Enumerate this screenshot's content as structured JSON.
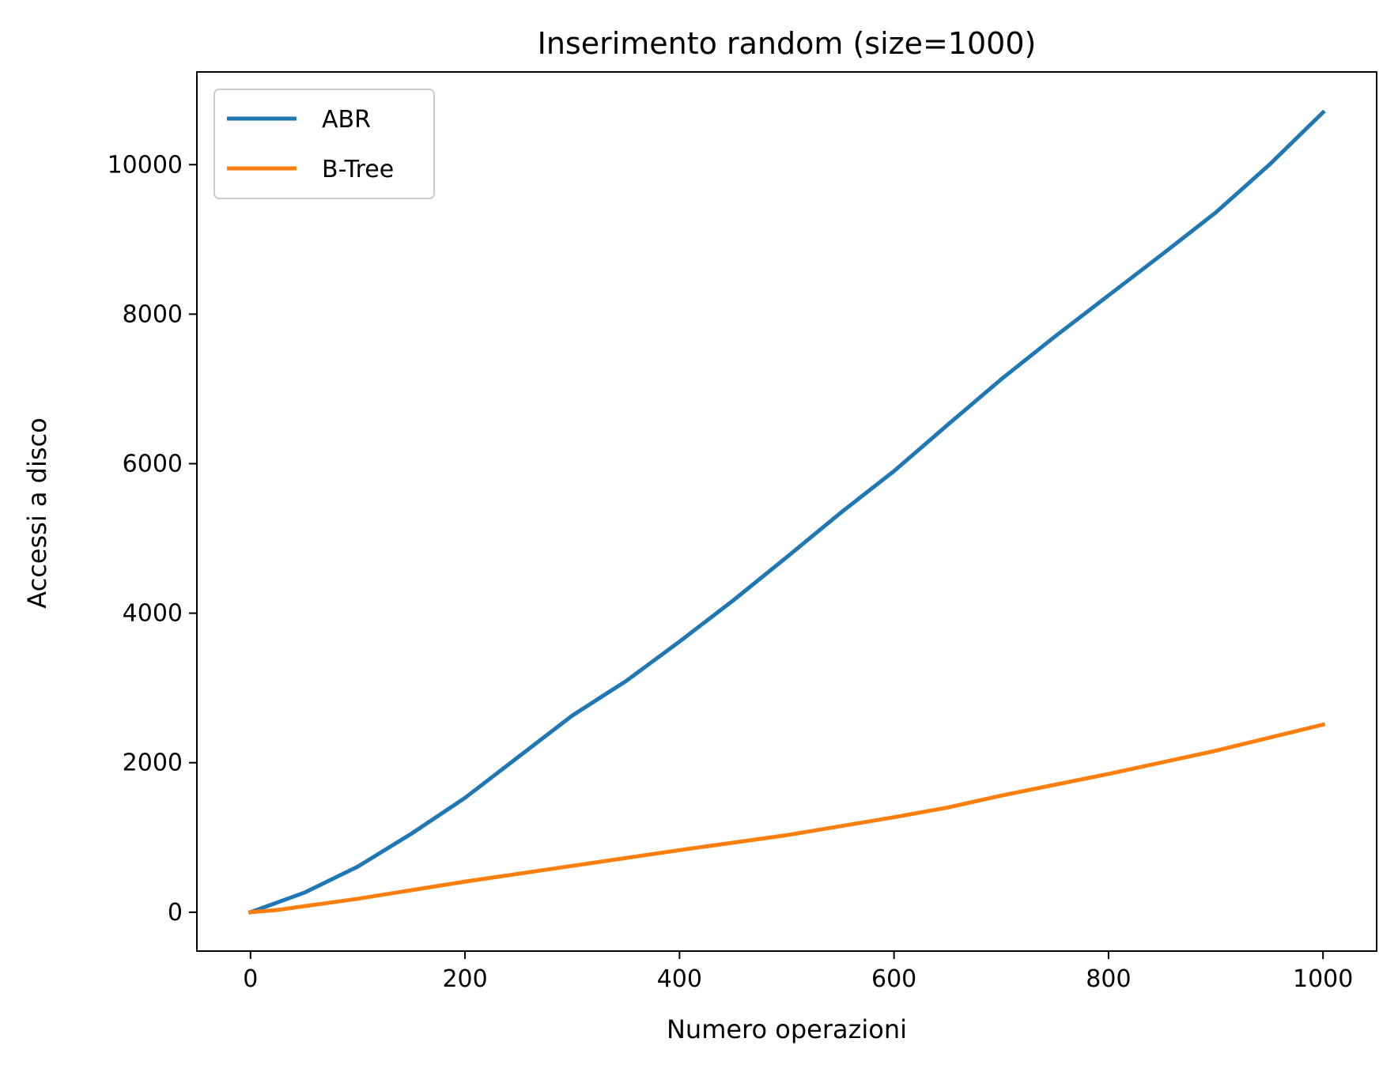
{
  "chart_data": {
    "type": "line",
    "title": "Inserimento random (size=1000)",
    "xlabel": "Numero operazioni",
    "ylabel": "Accessi a disco",
    "xlim": [
      -50,
      1050
    ],
    "ylim": [
      -520,
      11240
    ],
    "xticks": [
      0,
      200,
      400,
      600,
      800,
      1000
    ],
    "yticks": [
      0,
      2000,
      4000,
      6000,
      8000,
      10000
    ],
    "grid": false,
    "legend_position": "top-left",
    "series": [
      {
        "name": "ABR",
        "color": "#1f77b4",
        "x": [
          0,
          50,
          100,
          150,
          200,
          250,
          300,
          350,
          400,
          450,
          500,
          550,
          600,
          650,
          700,
          750,
          800,
          850,
          900,
          950,
          1000
        ],
        "y": [
          0,
          260,
          610,
          1050,
          1530,
          2080,
          2630,
          3090,
          3620,
          4170,
          4750,
          5340,
          5900,
          6520,
          7130,
          7700,
          8250,
          8800,
          9360,
          10000,
          10700
        ]
      },
      {
        "name": "B-Tree",
        "color": "#ff7f0e",
        "x": [
          0,
          25,
          100,
          200,
          300,
          400,
          500,
          600,
          650,
          700,
          800,
          900,
          1000
        ],
        "y": [
          0,
          30,
          180,
          410,
          620,
          830,
          1030,
          1270,
          1400,
          1560,
          1850,
          2160,
          2510
        ]
      }
    ]
  }
}
